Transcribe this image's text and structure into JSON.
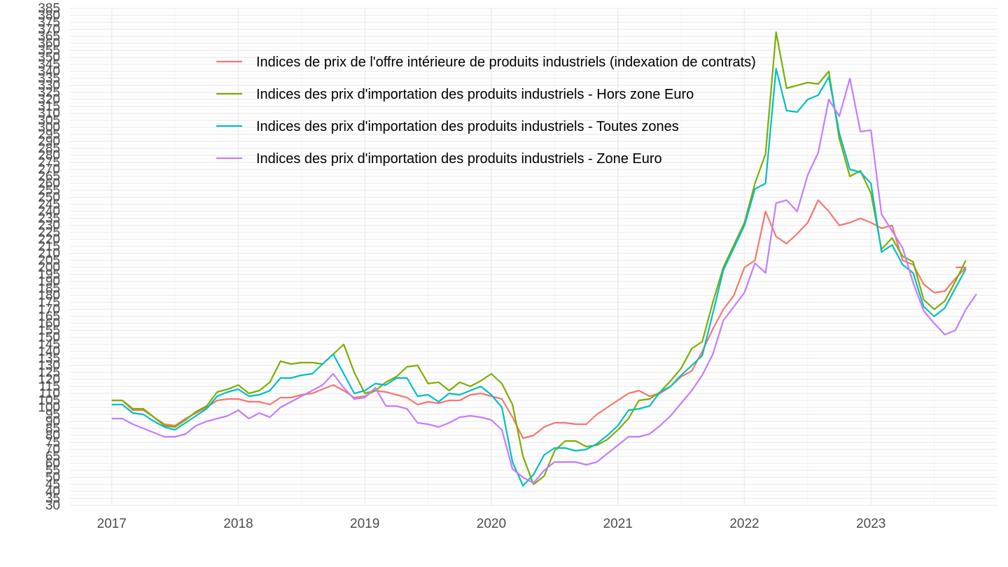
{
  "chart_data": {
    "type": "line",
    "title": "",
    "xlabel": "",
    "ylabel": "",
    "xlim": [
      2016.67,
      2024.0
    ],
    "ylim": [
      30,
      385
    ],
    "x_ticks": [
      "2017",
      "2018",
      "2019",
      "2020",
      "2021",
      "2022",
      "2023"
    ],
    "y_ticks": [
      30,
      35,
      40,
      45,
      50,
      55,
      60,
      65,
      70,
      75,
      80,
      85,
      90,
      95,
      100,
      105,
      110,
      115,
      120,
      125,
      130,
      135,
      140,
      145,
      150,
      155,
      160,
      165,
      170,
      175,
      180,
      185,
      190,
      195,
      200,
      205,
      210,
      215,
      220,
      225,
      230,
      235,
      240,
      245,
      250,
      255,
      260,
      265,
      270,
      275,
      280,
      285,
      290,
      295,
      300,
      305,
      310,
      315,
      320,
      325,
      330,
      335,
      340,
      345,
      350,
      355,
      360,
      365,
      370,
      375,
      380,
      385
    ],
    "grid": true,
    "legend_position": "inside-top",
    "x_start": 2017.0,
    "x_step": 0.083333,
    "series": [
      {
        "name": "Indices de prix de l'offre intérieure de produits industriels (indexation de contrats)",
        "color": "#F8766D",
        "values": [
          105,
          105,
          98,
          98,
          93,
          88,
          87,
          92,
          96,
          100,
          105,
          106,
          106,
          104,
          104,
          102,
          107,
          107,
          109,
          110,
          113,
          116,
          112,
          107,
          108,
          112,
          111,
          109,
          107,
          102,
          104,
          103,
          105,
          105,
          109,
          110,
          108,
          106,
          93,
          78,
          80,
          86,
          89,
          89,
          88,
          88,
          95,
          100,
          105,
          110,
          112,
          108,
          110,
          115,
          122,
          126,
          140,
          156,
          170,
          180,
          200,
          205,
          240,
          222,
          217,
          224,
          232,
          248,
          240,
          230,
          232,
          235,
          232,
          228,
          230,
          205,
          202,
          188,
          182,
          183,
          192,
          200
        ],
        "points": [
          [
            2023.67,
            200
          ]
        ]
      },
      {
        "name": "Indices des prix d'importation des produits industriels - Hors zone Euro",
        "color": "#7CAE00",
        "values": [
          105,
          105,
          99,
          99,
          93,
          87,
          86,
          91,
          97,
          101,
          111,
          113,
          116,
          110,
          112,
          118,
          133,
          131,
          132,
          132,
          131,
          138,
          145,
          125,
          110,
          112,
          118,
          122,
          129,
          130,
          117,
          118,
          112,
          118,
          115,
          119,
          124,
          117,
          102,
          65,
          45,
          51,
          69,
          76,
          76,
          72,
          73,
          77,
          84,
          92,
          105,
          106,
          111,
          119,
          128,
          142,
          147,
          175,
          200,
          216,
          232,
          260,
          281,
          368,
          328,
          330,
          332,
          331,
          340,
          292,
          265,
          269,
          253,
          213,
          221,
          208,
          204,
          177,
          170,
          176,
          190,
          205
        ]
      },
      {
        "name": "Indices des prix d'importation des produits industriels - Toutes zones",
        "color": "#00BFC4",
        "values": [
          102,
          102,
          96,
          95,
          90,
          86,
          84,
          89,
          94,
          99,
          108,
          111,
          113,
          108,
          109,
          112,
          121,
          121,
          123,
          124,
          131,
          138,
          124,
          110,
          112,
          117,
          116,
          121,
          121,
          108,
          109,
          104,
          110,
          109,
          112,
          115,
          109,
          100,
          61,
          44,
          52,
          66,
          71,
          71,
          69,
          70,
          74,
          80,
          87,
          98,
          99,
          101,
          111,
          115,
          123,
          130,
          137,
          167,
          198,
          214,
          230,
          256,
          260,
          342,
          312,
          311,
          320,
          323,
          336,
          296,
          270,
          268,
          260,
          211,
          216,
          202,
          196,
          172,
          165,
          171,
          185,
          199
        ]
      },
      {
        "name": "Indices des prix d'importation des produits industriels - Zone Euro",
        "color": "#C77CFF",
        "values": [
          92,
          92,
          88,
          85,
          82,
          79,
          79,
          81,
          87,
          90,
          92,
          94,
          98,
          92,
          96,
          93,
          100,
          104,
          108,
          112,
          116,
          124,
          114,
          106,
          107,
          114,
          101,
          101,
          99,
          89,
          88,
          86,
          89,
          93,
          94,
          93,
          91,
          84,
          56,
          50,
          46,
          55,
          61,
          61,
          61,
          59,
          61,
          67,
          73,
          79,
          79,
          81,
          87,
          94,
          103,
          112,
          123,
          138,
          162,
          172,
          182,
          203,
          196,
          246,
          248,
          240,
          266,
          282,
          320,
          308,
          335,
          297,
          298,
          238,
          226,
          214,
          189,
          169,
          160,
          152,
          155,
          170,
          181
        ]
      }
    ]
  }
}
